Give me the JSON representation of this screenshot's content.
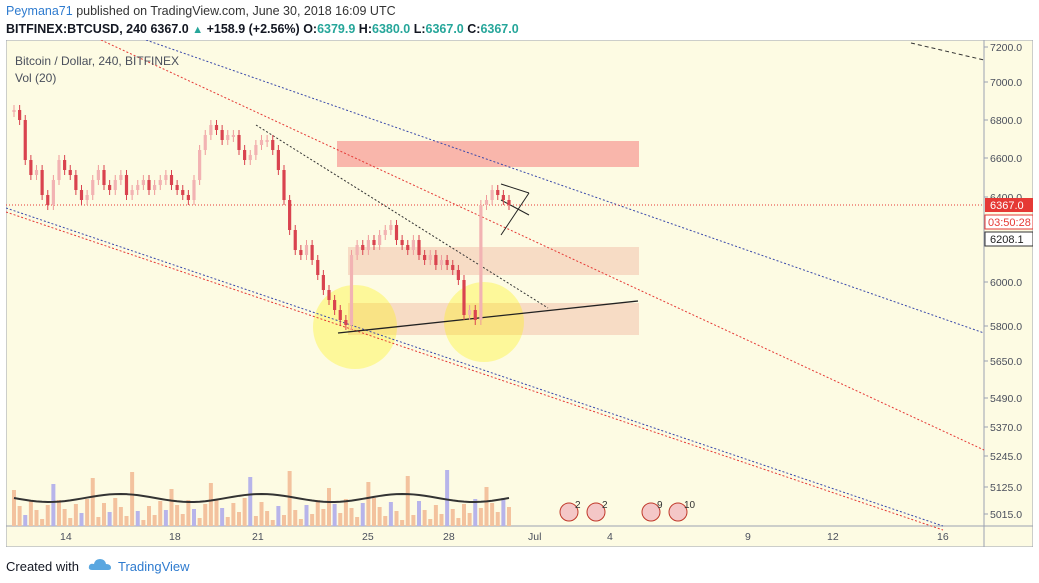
{
  "header": {
    "author": "Peymana71",
    "published_text": "published on TradingView.com, June 30, 2018 16:09 UTC",
    "symbol": "BITFINEX:BTCUSD, 240",
    "last": "6367.0",
    "change": "+158.9 (+2.56%)",
    "o_label": "O:",
    "o": "6379.9",
    "h_label": "H:",
    "h": "6380.0",
    "l_label": "L:",
    "l": "6367.0",
    "c_label": "C:",
    "c": "6367.0"
  },
  "chart": {
    "title": "Bitcoin / Dollar, 240, BITFINEX",
    "vol_label": "Vol (20)",
    "price_axis": [
      "7200.0",
      "7000.0",
      "6800.0",
      "6600.0",
      "6400.0",
      "6200.0",
      "6000.0",
      "5800.0",
      "5650.0",
      "5490.0",
      "5370.0",
      "5245.0",
      "5125.0",
      "5015.0"
    ],
    "time_axis": [
      "14",
      "18",
      "21",
      "25",
      "28",
      "Jul",
      "4",
      "9",
      "12",
      "16"
    ],
    "last_price_tag": "6367.0",
    "countdown_tag": "03:50:28",
    "level_tag": "6208.1",
    "events": [
      "2",
      "2",
      "9",
      "10"
    ],
    "colors": {
      "background": "#fdfbe3",
      "up": "#ef9a9a",
      "down": "#d9434f",
      "zone_red": "#f8a9a1",
      "zone_orange": "#f4cfb8",
      "volume": "#f3c29e",
      "volume_blue": "#b7b4ea",
      "ma": "#333333"
    }
  },
  "footer": {
    "created_with": "Created with",
    "brand": "TradingView"
  }
}
